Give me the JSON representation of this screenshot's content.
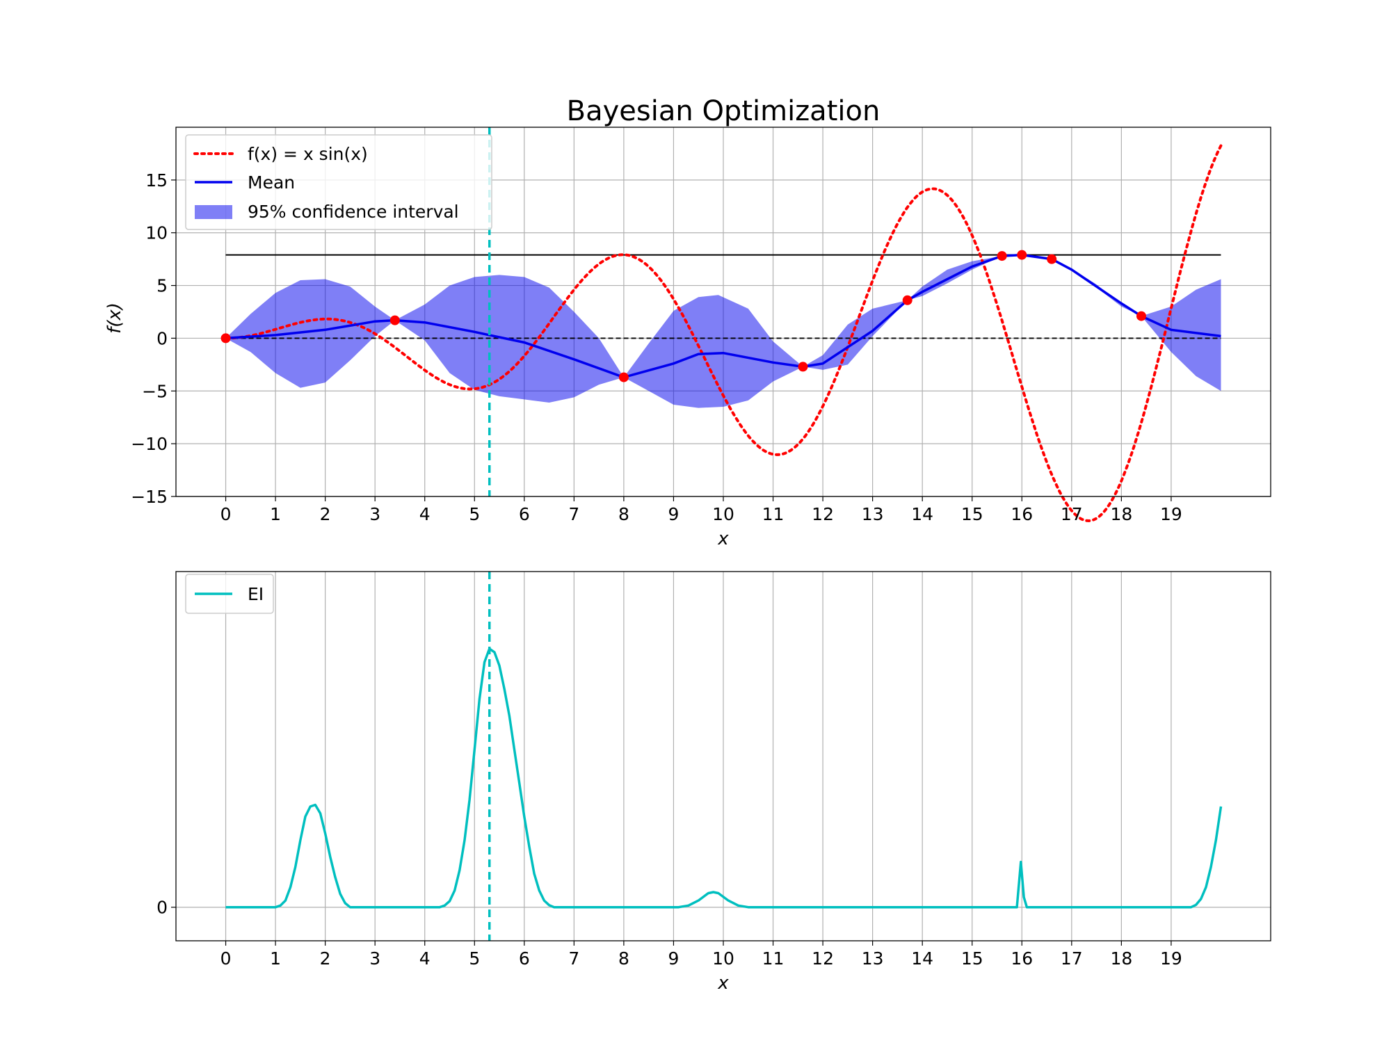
{
  "chart_data": [
    {
      "type": "line",
      "title": "Bayesian Optimization",
      "xlabel": "x",
      "ylabel": "f(x)",
      "xlim": [
        -1,
        21
      ],
      "ylim": [
        -15,
        20
      ],
      "xticks": [
        0,
        1,
        2,
        3,
        4,
        5,
        6,
        7,
        8,
        9,
        10,
        11,
        12,
        13,
        14,
        15,
        16,
        17,
        18,
        19
      ],
      "yticks": [
        -15,
        -10,
        -5,
        0,
        5,
        10,
        15
      ],
      "ytick_labels": [
        "−15",
        "−10",
        "−5",
        "0",
        "5",
        "10",
        "15"
      ],
      "grid": true,
      "legend_position": "top-left",
      "legend": [
        "f(x) = x sin(x)",
        "Mean",
        "95% confidence interval"
      ],
      "series": [
        {
          "name": "f(x) = x sin(x)",
          "style": "dotted",
          "color": "#ff0000",
          "function": "x*sin(x)",
          "x_range": [
            0,
            20
          ]
        },
        {
          "name": "Mean",
          "style": "solid",
          "color": "#0000ee",
          "points": [
            [
              0,
              0
            ],
            [
              1,
              0.3
            ],
            [
              2,
              0.8
            ],
            [
              3,
              1.6
            ],
            [
              3.4,
              1.7
            ],
            [
              4,
              1.5
            ],
            [
              5,
              0.6
            ],
            [
              5.3,
              0.3
            ],
            [
              6,
              -0.4
            ],
            [
              7,
              -2.0
            ],
            [
              8,
              -3.7
            ],
            [
              9,
              -2.4
            ],
            [
              9.5,
              -1.5
            ],
            [
              10,
              -1.4
            ],
            [
              11,
              -2.3
            ],
            [
              11.6,
              -2.7
            ],
            [
              12,
              -2.4
            ],
            [
              13,
              0.7
            ],
            [
              13.7,
              3.6
            ],
            [
              14,
              4.4
            ],
            [
              15,
              6.8
            ],
            [
              15.6,
              7.8
            ],
            [
              16,
              7.9
            ],
            [
              16.6,
              7.5
            ],
            [
              17,
              6.5
            ],
            [
              18,
              3.3
            ],
            [
              18.4,
              2.1
            ],
            [
              19,
              0.8
            ],
            [
              20,
              0.2
            ]
          ]
        },
        {
          "name": "95% confidence interval",
          "color": "#0000ee",
          "alpha": 0.5,
          "upper": [
            [
              0,
              0
            ],
            [
              0.5,
              2.3
            ],
            [
              1,
              4.3
            ],
            [
              1.5,
              5.5
            ],
            [
              2,
              5.6
            ],
            [
              2.5,
              4.9
            ],
            [
              3,
              3.0
            ],
            [
              3.4,
              1.7
            ],
            [
              4,
              3.2
            ],
            [
              4.5,
              5.0
            ],
            [
              5,
              5.8
            ],
            [
              5.5,
              6.0
            ],
            [
              6,
              5.8
            ],
            [
              6.5,
              4.8
            ],
            [
              7,
              2.5
            ],
            [
              7.5,
              0.0
            ],
            [
              8,
              -3.7
            ],
            [
              8.5,
              -0.5
            ],
            [
              9,
              2.6
            ],
            [
              9.5,
              3.9
            ],
            [
              9.9,
              4.1
            ],
            [
              10.5,
              2.8
            ],
            [
              11,
              -0.3
            ],
            [
              11.6,
              -2.7
            ],
            [
              12,
              -1.6
            ],
            [
              12.5,
              1.3
            ],
            [
              13,
              2.8
            ],
            [
              13.7,
              3.6
            ],
            [
              14,
              4.9
            ],
            [
              14.5,
              6.5
            ],
            [
              15,
              7.3
            ],
            [
              15.6,
              7.8
            ],
            [
              16,
              7.9
            ],
            [
              16.6,
              7.5
            ],
            [
              17,
              6.6
            ],
            [
              17.5,
              5.1
            ],
            [
              18,
              3.2
            ],
            [
              18.4,
              2.1
            ],
            [
              19,
              3.0
            ],
            [
              19.5,
              4.6
            ],
            [
              20,
              5.6
            ]
          ],
          "lower": [
            [
              0,
              0
            ],
            [
              0.5,
              -1.3
            ],
            [
              1,
              -3.3
            ],
            [
              1.5,
              -4.7
            ],
            [
              2,
              -4.2
            ],
            [
              2.5,
              -2.1
            ],
            [
              3,
              0.2
            ],
            [
              3.4,
              1.7
            ],
            [
              4,
              -0.2
            ],
            [
              4.5,
              -3.3
            ],
            [
              5,
              -4.9
            ],
            [
              5.5,
              -5.5
            ],
            [
              6,
              -5.8
            ],
            [
              6.5,
              -6.1
            ],
            [
              7,
              -5.6
            ],
            [
              7.5,
              -4.4
            ],
            [
              8,
              -3.7
            ],
            [
              8.5,
              -5.0
            ],
            [
              9,
              -6.3
            ],
            [
              9.5,
              -6.6
            ],
            [
              10,
              -6.5
            ],
            [
              10.5,
              -5.9
            ],
            [
              11,
              -4.1
            ],
            [
              11.6,
              -2.7
            ],
            [
              12,
              -3.0
            ],
            [
              12.5,
              -2.5
            ],
            [
              13,
              0.2
            ],
            [
              13.7,
              3.6
            ],
            [
              14,
              4.0
            ],
            [
              14.5,
              5.2
            ],
            [
              15,
              6.5
            ],
            [
              15.6,
              7.8
            ],
            [
              16,
              7.9
            ],
            [
              16.6,
              7.5
            ],
            [
              17,
              6.4
            ],
            [
              17.5,
              4.8
            ],
            [
              18,
              3.0
            ],
            [
              18.4,
              2.1
            ],
            [
              19,
              -1.3
            ],
            [
              19.5,
              -3.6
            ],
            [
              20,
              -5.0
            ]
          ]
        },
        {
          "name": "samples",
          "style": "markers",
          "color": "#ff0000",
          "points": [
            [
              0,
              0
            ],
            [
              3.4,
              1.7
            ],
            [
              8,
              -3.7
            ],
            [
              11.6,
              -2.7
            ],
            [
              13.7,
              3.6
            ],
            [
              15.6,
              7.8
            ],
            [
              16,
              7.9
            ],
            [
              16.6,
              7.5
            ],
            [
              18.4,
              2.1
            ]
          ]
        }
      ],
      "hlines": [
        {
          "y": 7.9,
          "x_range": [
            0,
            20
          ],
          "style": "solid",
          "color": "#000000"
        },
        {
          "y": 0,
          "x_range": [
            0,
            20
          ],
          "style": "dashed",
          "color": "#000000"
        }
      ],
      "vline": {
        "x": 5.3,
        "style": "dashed",
        "color": "#00bfbf"
      }
    },
    {
      "type": "line",
      "xlabel": "x",
      "xlim": [
        -1,
        21
      ],
      "ylim": [
        -0.1,
        1.0
      ],
      "xticks": [
        0,
        1,
        2,
        3,
        4,
        5,
        6,
        7,
        8,
        9,
        10,
        11,
        12,
        13,
        14,
        15,
        16,
        17,
        18,
        19
      ],
      "yticks": [
        0
      ],
      "ytick_labels": [
        "0"
      ],
      "grid": true,
      "legend_position": "top-left",
      "legend": [
        "EI"
      ],
      "series": [
        {
          "name": "EI",
          "color": "#00bfbf",
          "points": [
            [
              0,
              0
            ],
            [
              1,
              0
            ],
            [
              1.1,
              0.005
            ],
            [
              1.2,
              0.02
            ],
            [
              1.3,
              0.06
            ],
            [
              1.4,
              0.12
            ],
            [
              1.5,
              0.2
            ],
            [
              1.6,
              0.27
            ],
            [
              1.7,
              0.3
            ],
            [
              1.8,
              0.305
            ],
            [
              1.9,
              0.28
            ],
            [
              2.0,
              0.22
            ],
            [
              2.1,
              0.15
            ],
            [
              2.2,
              0.09
            ],
            [
              2.3,
              0.04
            ],
            [
              2.4,
              0.012
            ],
            [
              2.5,
              0
            ],
            [
              4.3,
              0
            ],
            [
              4.4,
              0.005
            ],
            [
              4.5,
              0.018
            ],
            [
              4.6,
              0.05
            ],
            [
              4.7,
              0.11
            ],
            [
              4.8,
              0.2
            ],
            [
              4.9,
              0.32
            ],
            [
              5.0,
              0.47
            ],
            [
              5.1,
              0.62
            ],
            [
              5.2,
              0.73
            ],
            [
              5.3,
              0.77
            ],
            [
              5.4,
              0.76
            ],
            [
              5.5,
              0.72
            ],
            [
              5.6,
              0.65
            ],
            [
              5.7,
              0.57
            ],
            [
              5.8,
              0.47
            ],
            [
              5.9,
              0.37
            ],
            [
              6.0,
              0.27
            ],
            [
              6.1,
              0.18
            ],
            [
              6.2,
              0.1
            ],
            [
              6.3,
              0.05
            ],
            [
              6.4,
              0.02
            ],
            [
              6.5,
              0.006
            ],
            [
              6.6,
              0
            ],
            [
              9.1,
              0
            ],
            [
              9.3,
              0.005
            ],
            [
              9.5,
              0.02
            ],
            [
              9.7,
              0.042
            ],
            [
              9.8,
              0.045
            ],
            [
              9.9,
              0.042
            ],
            [
              10.1,
              0.02
            ],
            [
              10.3,
              0.005
            ],
            [
              10.5,
              0
            ],
            [
              15.9,
              0
            ],
            [
              15.98,
              0.135
            ],
            [
              16.04,
              0.03
            ],
            [
              16.1,
              0
            ],
            [
              19.4,
              0
            ],
            [
              19.5,
              0.007
            ],
            [
              19.6,
              0.025
            ],
            [
              19.7,
              0.06
            ],
            [
              19.8,
              0.12
            ],
            [
              19.9,
              0.2
            ],
            [
              20,
              0.3
            ]
          ]
        }
      ],
      "vline": {
        "x": 5.3,
        "style": "dashed",
        "color": "#00bfbf"
      }
    }
  ]
}
